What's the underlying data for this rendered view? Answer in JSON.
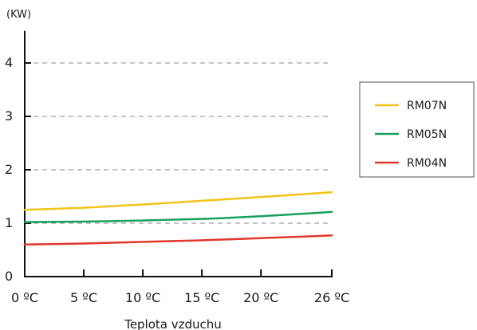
{
  "chart_data": {
    "type": "line",
    "y_unit_label": "(KW)",
    "xlabel": "Teplota vzduchu",
    "ylabel": "",
    "x_ticks": [
      0,
      5,
      10,
      15,
      20,
      26
    ],
    "x_tick_labels": [
      "0 ºC",
      "5 ºC",
      "10 ºC",
      "15 ºC",
      "20 ºC",
      "26 ºC"
    ],
    "y_ticks": [
      0,
      1,
      2,
      3,
      4
    ],
    "y_tick_labels": [
      "0",
      "1",
      "2",
      "3",
      "4"
    ],
    "xlim": [
      0,
      26
    ],
    "ylim": [
      0,
      4.6
    ],
    "grid": "horizontal dashed at 1, 2, 3, 4",
    "legend_position": "right",
    "x": [
      0,
      5,
      10,
      15,
      20,
      26
    ],
    "series": [
      {
        "name": "RM07N",
        "color": "#f2c318",
        "values": [
          1.25,
          1.29,
          1.35,
          1.42,
          1.49,
          1.58
        ]
      },
      {
        "name": "RM05N",
        "color": "#17a05b",
        "values": [
          1.02,
          1.03,
          1.05,
          1.08,
          1.13,
          1.21
        ]
      },
      {
        "name": "RM04N",
        "color": "#e0382b",
        "values": [
          0.6,
          0.62,
          0.65,
          0.68,
          0.72,
          0.77
        ]
      }
    ]
  }
}
